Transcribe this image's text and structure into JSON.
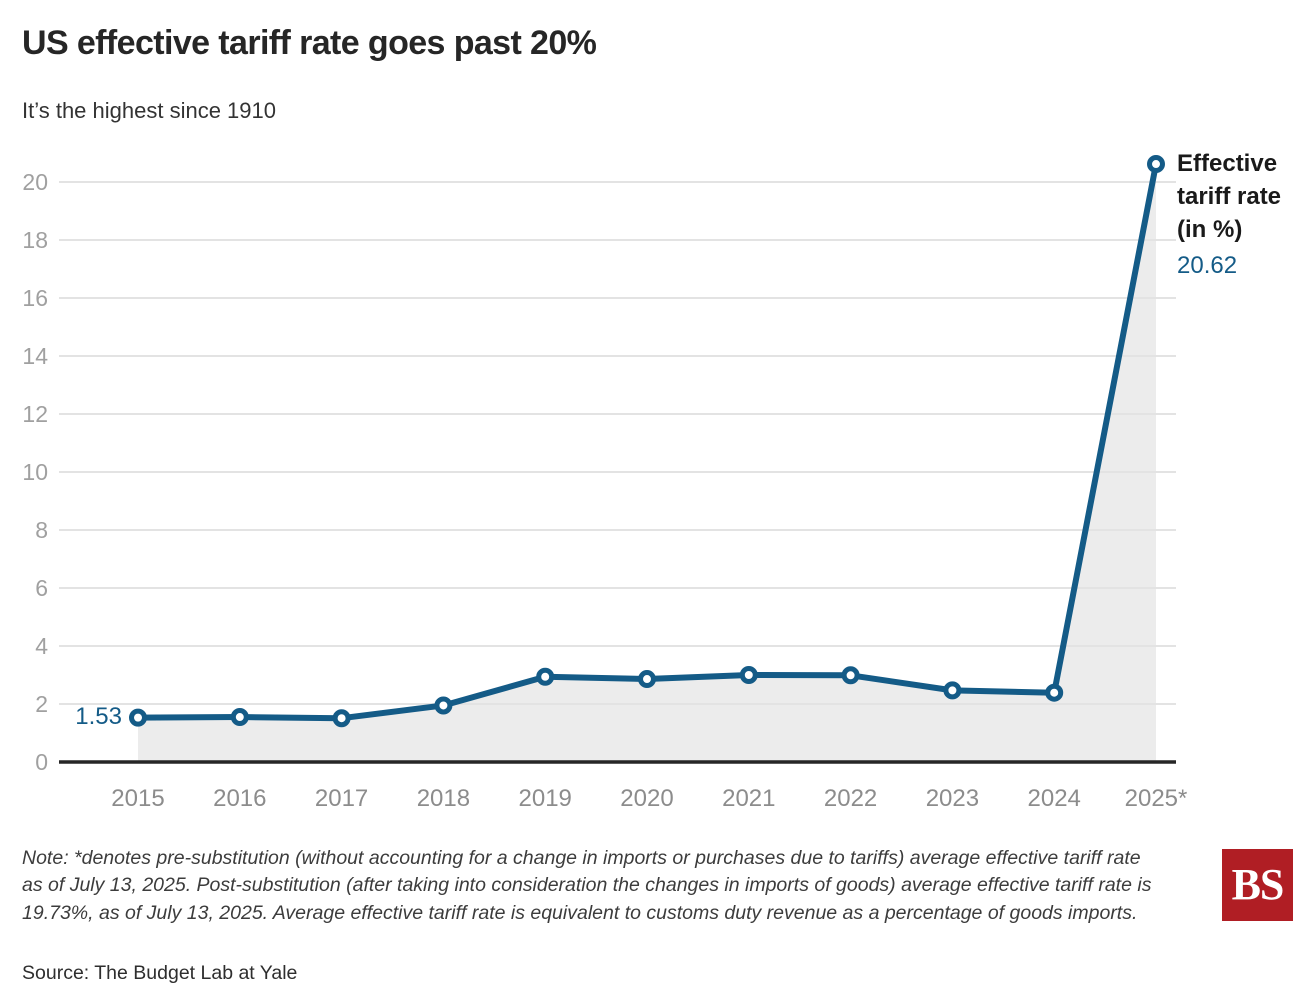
{
  "header": {
    "title": "US effective tariff rate goes past 20%",
    "subtitle": "It’s the highest since 1910"
  },
  "chart_data": {
    "type": "line",
    "title": "US effective tariff rate goes past 20%",
    "categories": [
      "2015",
      "2016",
      "2017",
      "2018",
      "2019",
      "2020",
      "2021",
      "2022",
      "2023",
      "2024",
      "2025*"
    ],
    "values": [
      1.53,
      1.55,
      1.51,
      1.95,
      2.94,
      2.86,
      3.0,
      2.99,
      2.47,
      2.39,
      20.62
    ],
    "series_label": "Effective tariff rate (in %)",
    "first_value_label": "1.53",
    "last_value_label": "20.62",
    "ylim": [
      0,
      21
    ],
    "yticks": [
      0,
      2,
      4,
      6,
      8,
      10,
      12,
      14,
      16,
      18,
      20
    ],
    "grid": true,
    "legend_position": "right-of-last-point",
    "colors": {
      "line": "#145b87",
      "area": "#ececec",
      "grid": "#e3e3e3",
      "axis": "#262626",
      "ytick_text": "#a0a0a0",
      "xtick_text": "#8c8c8c",
      "value_label": "#145b87"
    }
  },
  "footer": {
    "note": "Note: *denotes pre-substitution (without accounting for a change in imports or purchases due to tariffs) average effective tariff rate as of July 13, 2025. Post-substitution (after taking into consideration the changes in imports of goods) average effective tariff rate is 19.73%, as of July 13, 2025. Average effective tariff rate is equivalent to customs duty revenue as a percentage of goods imports.",
    "source": "Source: The Budget Lab at Yale",
    "logo_text": "BS",
    "logo_color": "#b01e24"
  }
}
